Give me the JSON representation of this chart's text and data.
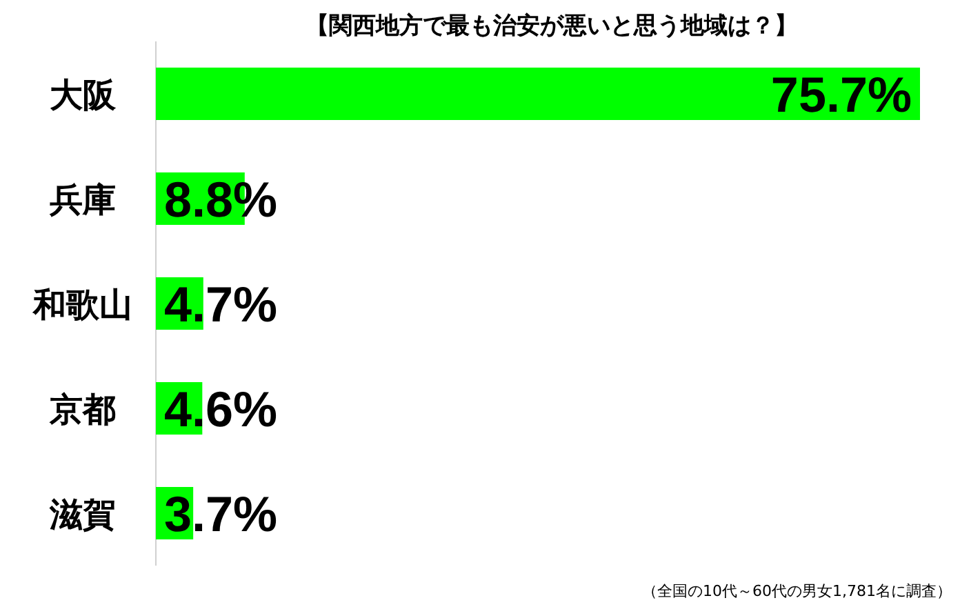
{
  "chart_data": {
    "type": "bar",
    "orientation": "horizontal",
    "title": "【関西地方で最も治安が悪いと思う地域は？】",
    "categories": [
      "大阪",
      "兵庫",
      "和歌山",
      "京都",
      "滋賀"
    ],
    "values": [
      75.7,
      8.8,
      4.7,
      4.6,
      3.7
    ],
    "value_labels": [
      "75.7%",
      "8.8%",
      "4.7%",
      "4.6%",
      "3.7%"
    ],
    "color": "#00ff00",
    "annotations": [
      "（全国の10代～60代の男女1,781名に調査）"
    ]
  }
}
